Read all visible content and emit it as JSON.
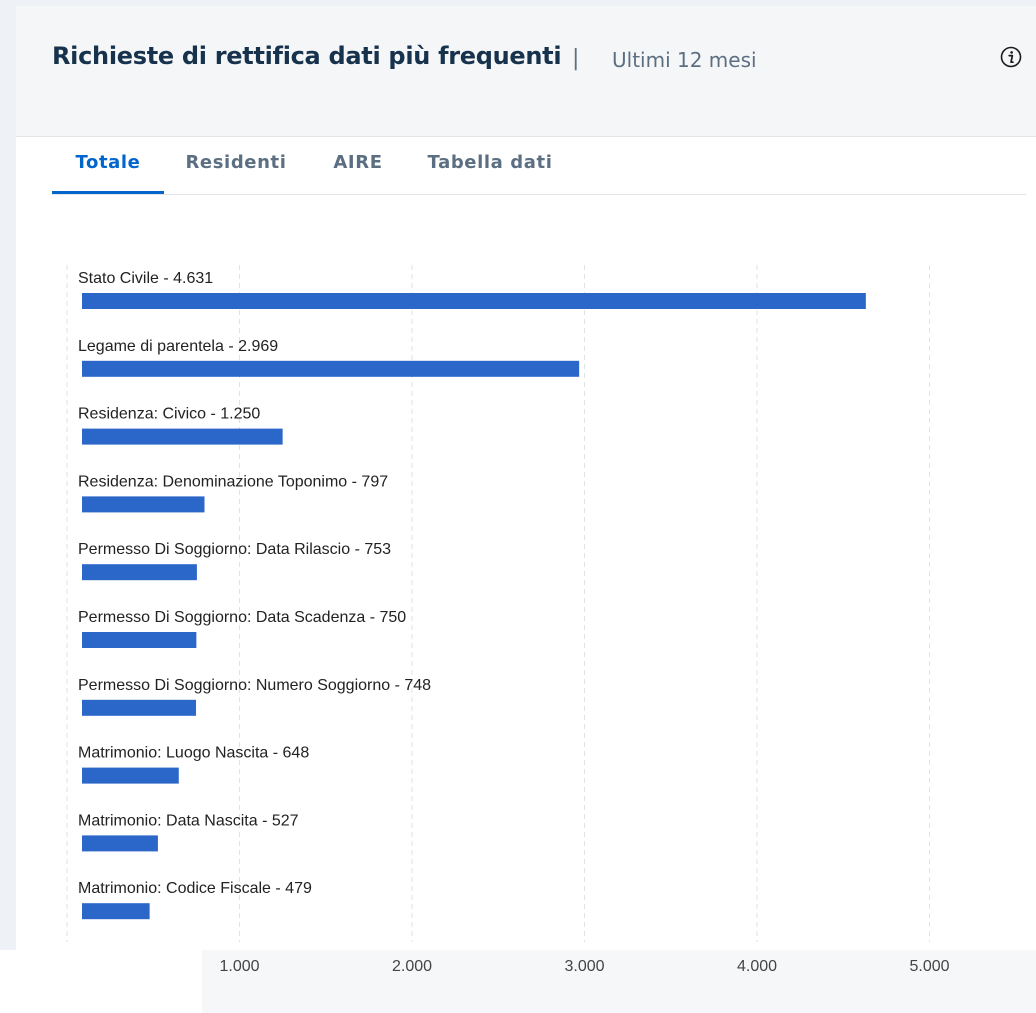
{
  "header": {
    "title": "Richieste di rettifica dati più frequenti",
    "separator": "|",
    "period": "Ultimi 12 mesi",
    "info_icon": "info-circle-icon"
  },
  "tabs": [
    {
      "label": "Totale",
      "active": true
    },
    {
      "label": "Residenti",
      "active": false
    },
    {
      "label": "AIRE",
      "active": false
    },
    {
      "label": "Tabella dati",
      "active": false
    }
  ],
  "colors": {
    "bar": "#2b66c9",
    "accent": "#0066cc",
    "title": "#17324d"
  },
  "chart_data": {
    "type": "bar",
    "orientation": "horizontal",
    "title": "",
    "xlabel": "",
    "ylabel": "",
    "categories": [
      "Stato Civile",
      "Legame di parentela",
      "Residenza: Civico",
      "Residenza: Denominazione Toponimo",
      "Permesso Di Soggiorno: Data Rilascio",
      "Permesso Di Soggiorno: Data Scadenza",
      "Permesso Di Soggiorno: Numero Soggiorno",
      "Matrimonio: Luogo Nascita",
      "Matrimonio: Data Nascita",
      "Matrimonio: Codice Fiscale"
    ],
    "values": [
      4631,
      2969,
      1250,
      797,
      753,
      750,
      748,
      648,
      527,
      479
    ],
    "data_labels": [
      "Stato Civile - 4.631",
      "Legame di parentela - 2.969",
      "Residenza: Civico - 1.250",
      "Residenza: Denominazione Toponimo - 797",
      "Permesso Di Soggiorno: Data Rilascio - 753",
      "Permesso Di Soggiorno: Data Scadenza - 750",
      "Permesso Di Soggiorno: Numero Soggiorno - 748",
      "Matrimonio: Luogo Nascita - 648",
      "Matrimonio: Data Nascita - 527",
      "Matrimonio: Codice Fiscale - 479"
    ],
    "xticks": [
      1000,
      2000,
      3000,
      4000,
      5000
    ],
    "xtick_labels": [
      "1.000",
      "2.000",
      "3.000",
      "4.000",
      "5.000"
    ],
    "xlim": [
      0,
      5000
    ],
    "grid": true,
    "gridlines": "vertical dashed",
    "legend": "none"
  }
}
